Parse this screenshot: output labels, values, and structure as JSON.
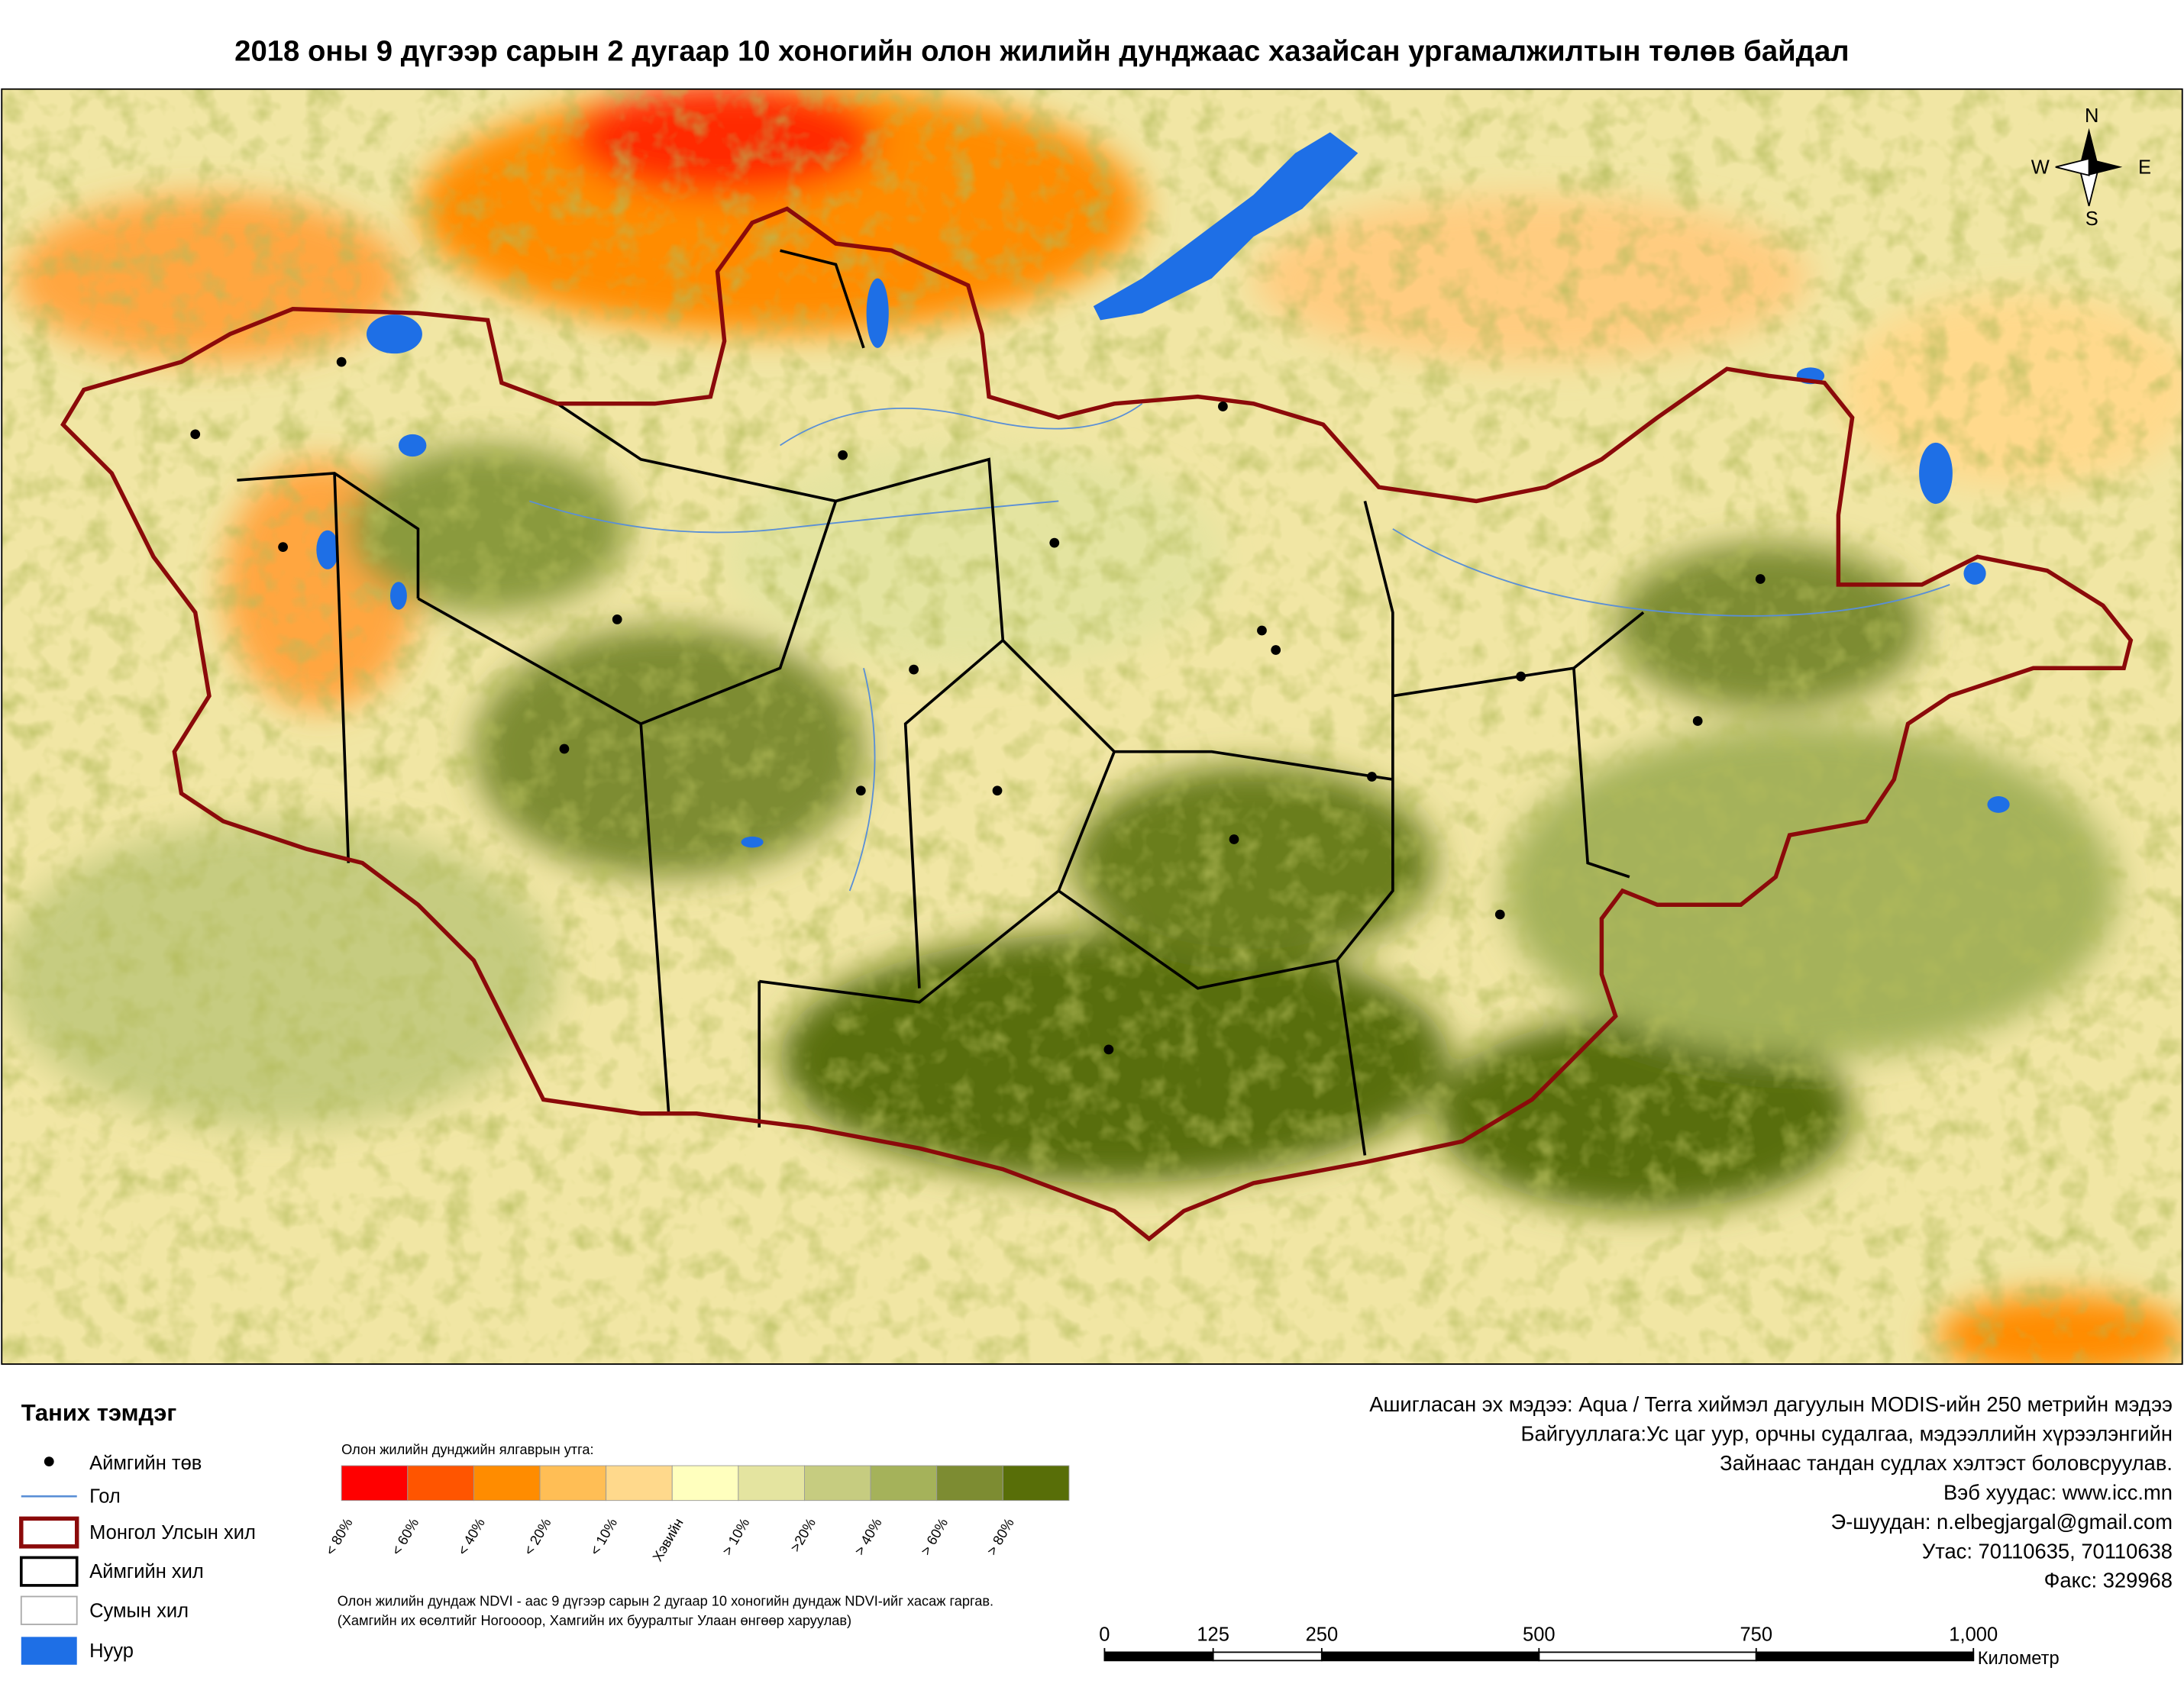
{
  "title": "2018 оны 9 дүгээр сарын 2 дугаар 10 хоногийн олон жилийн дунджаас хазайсан ургамалжилтын төлөв байдал",
  "north_arrow": {
    "n": "N",
    "s": "S",
    "e": "E",
    "w": "W"
  },
  "legend": {
    "title": "Таних тэмдэг",
    "items": [
      "Аймгийн төв",
      "Гол",
      "Монгол Улсын хил",
      "Аймгийн хил",
      "Сумын хил",
      "Нуур"
    ]
  },
  "ndvi_legend": {
    "title": "Олон жилийн дунджийн ялгаврын утга:",
    "classes": [
      {
        "label": "< 80%",
        "color": "#ff0000"
      },
      {
        "label": "< 60%",
        "color": "#ff5500"
      },
      {
        "label": "< 40%",
        "color": "#ff8c00"
      },
      {
        "label": "< 20%",
        "color": "#ffbe55"
      },
      {
        "label": "< 10%",
        "color": "#ffd98c"
      },
      {
        "label": "Хэвийн",
        "color": "#ffffbe"
      },
      {
        "label": "> 10%",
        "color": "#e4e4a0"
      },
      {
        "label": ">20%",
        "color": "#c6cc80"
      },
      {
        "label": "> 40%",
        "color": "#a5b25a"
      },
      {
        "label": "> 60%",
        "color": "#7d8c32"
      },
      {
        "label": "> 80%",
        "color": "#586e08"
      }
    ]
  },
  "note": [
    "Олон жилийн дундаж NDVI - аас 9 дүгээр сарын 2 дугаар 10 хоногийн дундаж NDVI-ийг хасаж гаргав.",
    "(Хамгийн их өсөлтийг Ногоооор,  Хамгийн их бууралтыг Улаан өнгөөр харуулав)"
  ],
  "credits": [
    "Ашигласан эх мэдээ: Aqua / Terra хиймэл дагуулын MODIS-ийн 250 метрийн мэдээ",
    "Байгууллага:Ус цаг уур, орчны судалгаа, мэдээллийн хүрээлэнгийн",
    "Зайнаас тандан судлах хэлтэст боловсруулав.",
    "Вэб хуудас: www.icc.mn",
    "Э-шуудан: n.elbegjargal@gmail.com",
    "Утас: 70110635, 70110638",
    "Факс: 329968"
  ],
  "scale_bar": {
    "ticks": [
      0,
      125,
      250,
      500,
      750,
      {
        "value": 1000,
        "label": "1,000"
      }
    ],
    "unit": "Километр"
  }
}
